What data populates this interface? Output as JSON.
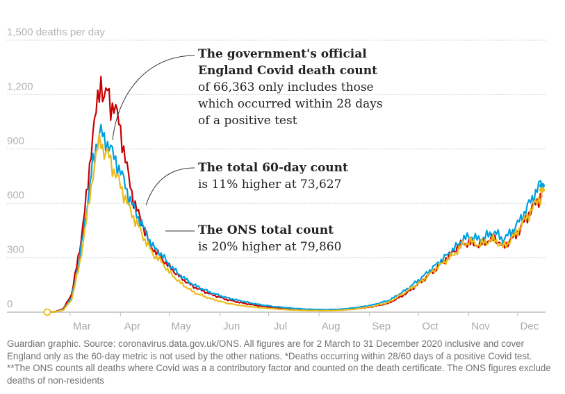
{
  "chart_data": {
    "type": "line",
    "ylabel": "deaths per day",
    "ylim": [
      0,
      1500
    ],
    "yticks": [
      {
        "value": 0,
        "label": "0"
      },
      {
        "value": 300,
        "label": "300"
      },
      {
        "value": 600,
        "label": "600"
      },
      {
        "value": 900,
        "label": "900"
      },
      {
        "value": 1200,
        "label": "1,200"
      },
      {
        "value": 1500,
        "label": "1,500 deaths per day"
      }
    ],
    "x_start": "2020-03-02",
    "x_end": "2020-12-31",
    "xticks": [
      {
        "day": 14,
        "label": "Mar"
      },
      {
        "day": 45,
        "label": "Apr"
      },
      {
        "day": 75,
        "label": "May"
      },
      {
        "day": 106,
        "label": "Jun"
      },
      {
        "day": 136,
        "label": "Jul"
      },
      {
        "day": 167,
        "label": "Aug"
      },
      {
        "day": 198,
        "label": "Sep"
      },
      {
        "day": 228,
        "label": "Oct"
      },
      {
        "day": 259,
        "label": "Nov"
      },
      {
        "day": 289,
        "label": "Dec"
      }
    ],
    "series_note": "values are estimated daily deaths at anchor days (days since 2 March 2020)",
    "series": [
      {
        "name": "The ONS total count",
        "color": "#c70000",
        "points": [
          [
            0,
            0
          ],
          [
            5,
            3
          ],
          [
            10,
            20
          ],
          [
            15,
            100
          ],
          [
            20,
            350
          ],
          [
            25,
            700
          ],
          [
            28,
            1000
          ],
          [
            31,
            1150
          ],
          [
            33,
            1280
          ],
          [
            35,
            1180
          ],
          [
            37,
            1220
          ],
          [
            39,
            1130
          ],
          [
            41,
            1150
          ],
          [
            43,
            1080
          ],
          [
            45,
            1000
          ],
          [
            48,
            850
          ],
          [
            50,
            740
          ],
          [
            53,
            620
          ],
          [
            56,
            540
          ],
          [
            60,
            450
          ],
          [
            63,
            370
          ],
          [
            68,
            320
          ],
          [
            75,
            250
          ],
          [
            82,
            190
          ],
          [
            90,
            140
          ],
          [
            100,
            100
          ],
          [
            110,
            70
          ],
          [
            120,
            50
          ],
          [
            130,
            35
          ],
          [
            140,
            25
          ],
          [
            150,
            17
          ],
          [
            160,
            12
          ],
          [
            170,
            10
          ],
          [
            180,
            12
          ],
          [
            190,
            18
          ],
          [
            200,
            30
          ],
          [
            210,
            50
          ],
          [
            220,
            100
          ],
          [
            230,
            170
          ],
          [
            240,
            250
          ],
          [
            250,
            340
          ],
          [
            255,
            380
          ],
          [
            260,
            380
          ],
          [
            265,
            370
          ],
          [
            270,
            390
          ],
          [
            275,
            410
          ],
          [
            280,
            360
          ],
          [
            285,
            400
          ],
          [
            290,
            450
          ],
          [
            295,
            530
          ],
          [
            300,
            600
          ],
          [
            304,
            650
          ]
        ]
      },
      {
        "name": "The total 60-day count",
        "color": "#00a0e0",
        "points": [
          [
            0,
            0
          ],
          [
            5,
            2
          ],
          [
            10,
            15
          ],
          [
            15,
            80
          ],
          [
            20,
            300
          ],
          [
            25,
            620
          ],
          [
            28,
            820
          ],
          [
            31,
            960
          ],
          [
            33,
            1000
          ],
          [
            35,
            940
          ],
          [
            38,
            930
          ],
          [
            41,
            850
          ],
          [
            45,
            780
          ],
          [
            50,
            640
          ],
          [
            55,
            540
          ],
          [
            60,
            450
          ],
          [
            65,
            360
          ],
          [
            70,
            320
          ],
          [
            75,
            260
          ],
          [
            82,
            200
          ],
          [
            90,
            150
          ],
          [
            100,
            110
          ],
          [
            110,
            80
          ],
          [
            120,
            60
          ],
          [
            130,
            42
          ],
          [
            140,
            30
          ],
          [
            150,
            22
          ],
          [
            160,
            16
          ],
          [
            170,
            14
          ],
          [
            180,
            16
          ],
          [
            190,
            25
          ],
          [
            200,
            40
          ],
          [
            210,
            65
          ],
          [
            220,
            120
          ],
          [
            230,
            190
          ],
          [
            240,
            270
          ],
          [
            250,
            350
          ],
          [
            255,
            400
          ],
          [
            260,
            420
          ],
          [
            265,
            400
          ],
          [
            270,
            420
          ],
          [
            275,
            440
          ],
          [
            280,
            400
          ],
          [
            285,
            440
          ],
          [
            290,
            500
          ],
          [
            295,
            580
          ],
          [
            300,
            660
          ],
          [
            304,
            720
          ]
        ]
      },
      {
        "name": "The government's official England Covid death count",
        "color": "#ebbb1c",
        "points": [
          [
            0,
            0
          ],
          [
            5,
            2
          ],
          [
            10,
            12
          ],
          [
            15,
            70
          ],
          [
            20,
            270
          ],
          [
            25,
            560
          ],
          [
            28,
            760
          ],
          [
            31,
            900
          ],
          [
            33,
            960
          ],
          [
            35,
            880
          ],
          [
            38,
            860
          ],
          [
            41,
            780
          ],
          [
            45,
            700
          ],
          [
            50,
            580
          ],
          [
            55,
            490
          ],
          [
            60,
            400
          ],
          [
            65,
            320
          ],
          [
            70,
            280
          ],
          [
            75,
            220
          ],
          [
            82,
            160
          ],
          [
            90,
            110
          ],
          [
            100,
            75
          ],
          [
            110,
            50
          ],
          [
            120,
            35
          ],
          [
            130,
            25
          ],
          [
            140,
            18
          ],
          [
            150,
            12
          ],
          [
            160,
            9
          ],
          [
            170,
            8
          ],
          [
            180,
            10
          ],
          [
            190,
            18
          ],
          [
            200,
            32
          ],
          [
            210,
            55
          ],
          [
            220,
            110
          ],
          [
            230,
            170
          ],
          [
            240,
            250
          ],
          [
            250,
            320
          ],
          [
            255,
            370
          ],
          [
            260,
            390
          ],
          [
            265,
            370
          ],
          [
            270,
            390
          ],
          [
            275,
            400
          ],
          [
            280,
            360
          ],
          [
            285,
            400
          ],
          [
            290,
            460
          ],
          [
            295,
            530
          ],
          [
            300,
            600
          ],
          [
            304,
            650
          ]
        ]
      }
    ]
  },
  "annotations": {
    "gov": {
      "heading": "The government's official England Covid death count",
      "body": "of 66,363 only includes those which occurred within 28 days of a positive test"
    },
    "sixty": {
      "heading": "The total 60-day count",
      "body": "is 11% higher at 73,627"
    },
    "ons": {
      "heading": "The ONS total count",
      "body": "is 20% higher at 79,860"
    }
  },
  "footnote": "Guardian graphic. Source: coronavirus.data.gov.uk/ONS. All figures are for 2 March to 31 December 2020 inclusive and cover England only as the 60-day metric is not used by the other nations. *Deaths occurring within 28/60 days of a positive Covid test. **The ONS counts all deaths where Covid was a a contributory factor and counted on the death certificate. The ONS figures exclude deaths of non-residents"
}
